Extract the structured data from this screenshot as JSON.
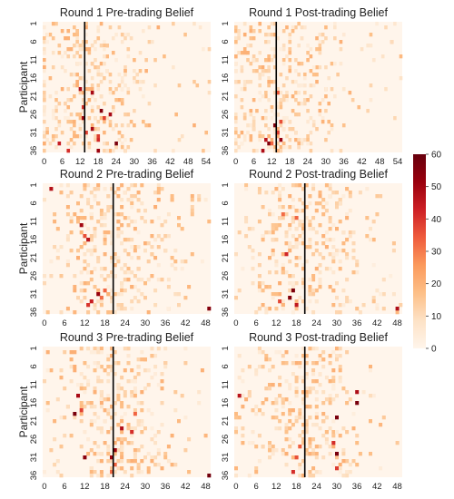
{
  "figure": {
    "ylabel": "Participant",
    "palette": [
      "#fff5eb",
      "#fde2c6",
      "#fdbf87",
      "#fb9a5c",
      "#ef5b3c",
      "#cd2025",
      "#99000d",
      "#67000d"
    ]
  },
  "chart_data": [
    {
      "type": "heatmap",
      "title": "Round 1  Pre-trading Belief",
      "round": 1,
      "phase": "pre",
      "xmax": 56,
      "vline": 14,
      "xticks": [
        "0",
        "6",
        "12",
        "18",
        "24",
        "30",
        "36",
        "42",
        "48",
        "54"
      ],
      "yticks": [
        "1",
        "6",
        "11",
        "16",
        "21",
        "26",
        "31",
        "36"
      ],
      "participants": 36,
      "strong_cells": [
        [
          13,
          24
        ],
        [
          14,
          31
        ],
        [
          18,
          33
        ],
        [
          18,
          36
        ],
        [
          8,
          36
        ],
        [
          13,
          27
        ],
        [
          16,
          20
        ],
        [
          12,
          19
        ],
        [
          19,
          25
        ],
        [
          20,
          27
        ],
        [
          16,
          30
        ],
        [
          22,
          26
        ],
        [
          24,
          34
        ],
        [
          18,
          32
        ],
        [
          5,
          34
        ]
      ]
    },
    {
      "type": "heatmap",
      "title": "Round 1  Post-trading Belief",
      "round": 1,
      "phase": "post",
      "xmax": 56,
      "vline": 14,
      "xticks": [
        "0",
        "6",
        "12",
        "18",
        "24",
        "30",
        "36",
        "42",
        "48",
        "54"
      ],
      "yticks": [
        "1",
        "6",
        "11",
        "16",
        "21",
        "26",
        "31",
        "36"
      ],
      "participants": 36,
      "strong_cells": [
        [
          10,
          33
        ],
        [
          9,
          36
        ],
        [
          11,
          34
        ],
        [
          14,
          20
        ],
        [
          13,
          29
        ],
        [
          14,
          31
        ],
        [
          15,
          33
        ],
        [
          15,
          28
        ],
        [
          12,
          34
        ]
      ]
    },
    {
      "type": "heatmap",
      "title": "Round 2  Pre-trading Belief",
      "round": 2,
      "phase": "pre",
      "xmax": 50,
      "vline": 21,
      "xticks": [
        "0",
        "6",
        "12",
        "18",
        "24",
        "30",
        "36",
        "42",
        "48"
      ],
      "yticks": [
        "1",
        "6",
        "11",
        "16",
        "21",
        "26",
        "31",
        "36"
      ],
      "participants": 36,
      "strong_cells": [
        [
          2,
          2
        ],
        [
          11,
          12
        ],
        [
          12,
          15
        ],
        [
          13,
          16
        ],
        [
          14,
          33
        ],
        [
          16,
          31
        ],
        [
          17,
          32
        ],
        [
          18,
          30
        ],
        [
          13,
          34
        ],
        [
          49,
          35
        ]
      ]
    },
    {
      "type": "heatmap",
      "title": "Round 2  Post-trading Belief",
      "round": 2,
      "phase": "post",
      "xmax": 50,
      "vline": 21,
      "xticks": [
        "0",
        "6",
        "12",
        "18",
        "24",
        "30",
        "36",
        "42",
        "48"
      ],
      "yticks": [
        "1",
        "6",
        "11",
        "16",
        "21",
        "26",
        "31",
        "36"
      ],
      "participants": 36,
      "strong_cells": [
        [
          14,
          9
        ],
        [
          18,
          10
        ],
        [
          15,
          20
        ],
        [
          17,
          30
        ],
        [
          16,
          32
        ],
        [
          18,
          34
        ],
        [
          48,
          35
        ],
        [
          13,
          33
        ]
      ]
    },
    {
      "type": "heatmap",
      "title": "Round 3  Pre-trading Belief",
      "round": 3,
      "phase": "pre",
      "xmax": 50,
      "vline": 21,
      "xticks": [
        "0",
        "6",
        "12",
        "18",
        "24",
        "30",
        "36",
        "42",
        "48"
      ],
      "yticks": [
        "1",
        "6",
        "11",
        "16",
        "21",
        "26",
        "31",
        "36"
      ],
      "participants": 36,
      "strong_cells": [
        [
          10,
          14
        ],
        [
          11,
          18
        ],
        [
          23,
          23
        ],
        [
          21,
          29
        ],
        [
          20,
          31
        ],
        [
          21,
          33
        ],
        [
          12,
          31
        ],
        [
          9,
          19
        ],
        [
          26,
          24
        ],
        [
          20,
          35
        ],
        [
          49,
          36
        ],
        [
          27,
          19
        ]
      ]
    },
    {
      "type": "heatmap",
      "title": "Round 3  Post-trading Belief",
      "round": 3,
      "phase": "post",
      "xmax": 50,
      "vline": 21,
      "xticks": [
        "0",
        "6",
        "12",
        "18",
        "24",
        "30",
        "36",
        "42",
        "48"
      ],
      "yticks": [
        "1",
        "6",
        "11",
        "16",
        "21",
        "26",
        "31",
        "36"
      ],
      "participants": 36,
      "strong_cells": [
        [
          30,
          20
        ],
        [
          29,
          27
        ],
        [
          30,
          30
        ],
        [
          30,
          34
        ],
        [
          18,
          31
        ],
        [
          19,
          28
        ],
        [
          36,
          13
        ],
        [
          1,
          14
        ],
        [
          36,
          16
        ],
        [
          17,
          35
        ]
      ]
    }
  ],
  "colorbar": {
    "min": 0,
    "max": 60,
    "ticks": [
      "0",
      "10",
      "20",
      "30",
      "40",
      "50",
      "60"
    ]
  }
}
